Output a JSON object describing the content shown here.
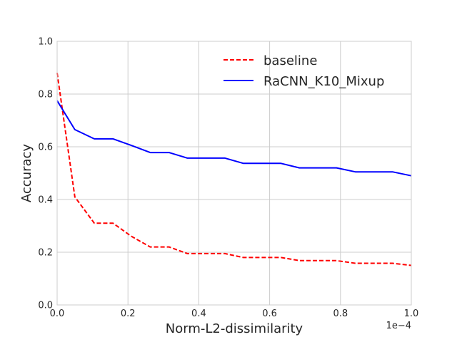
{
  "chart_data": {
    "type": "line",
    "xlabel": "Norm-L2-dissimilarity",
    "ylabel": "Accuracy",
    "x_offset_label": "1e−4",
    "xlim": [
      0.0,
      1.0
    ],
    "ylim": [
      0.0,
      1.0
    ],
    "xticks": [
      "0.0",
      "0.2",
      "0.4",
      "0.6",
      "0.8",
      "1.0"
    ],
    "yticks": [
      "0.0",
      "0.2",
      "0.4",
      "0.6",
      "0.8",
      "1.0"
    ],
    "grid": true,
    "legend_position": "top-right",
    "x": [
      0.0,
      0.05,
      0.105,
      0.158,
      0.21,
      0.263,
      0.316,
      0.368,
      0.421,
      0.474,
      0.526,
      0.579,
      0.632,
      0.684,
      0.737,
      0.789,
      0.842,
      0.895,
      0.947,
      1.0
    ],
    "series": [
      {
        "name": "baseline",
        "color": "#ff0000",
        "style": "dashed",
        "values": [
          0.88,
          0.41,
          0.31,
          0.31,
          0.26,
          0.22,
          0.22,
          0.195,
          0.195,
          0.195,
          0.18,
          0.18,
          0.18,
          0.168,
          0.168,
          0.168,
          0.158,
          0.158,
          0.158,
          0.15
        ]
      },
      {
        "name": "RaCNN_K10_Mixup",
        "color": "#0000ff",
        "style": "solid",
        "values": [
          0.775,
          0.665,
          0.63,
          0.63,
          0.605,
          0.578,
          0.578,
          0.557,
          0.557,
          0.557,
          0.537,
          0.537,
          0.537,
          0.52,
          0.52,
          0.52,
          0.505,
          0.505,
          0.505,
          0.49
        ]
      }
    ]
  }
}
